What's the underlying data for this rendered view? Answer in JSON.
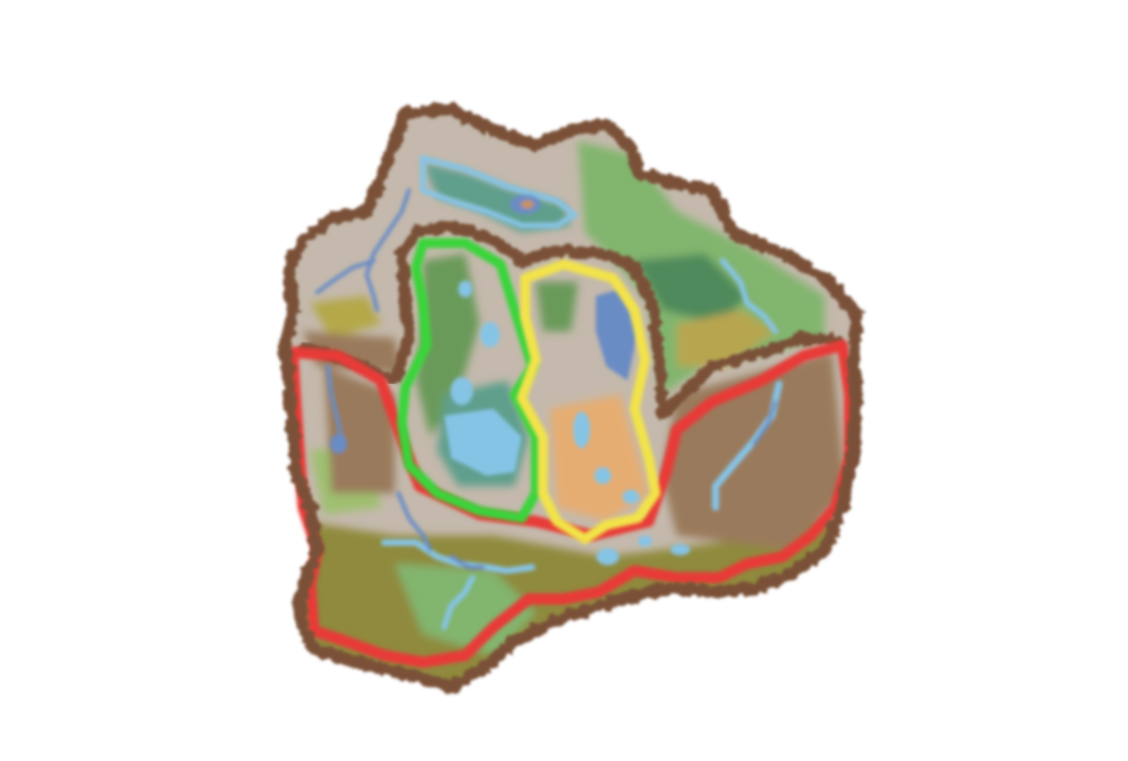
{
  "map": {
    "background_color": "#ffffff",
    "land_colors": {
      "plain": "#c4b9ac",
      "grass_light": "#82b56e",
      "grass_dark": "#4f8a5c",
      "olive": "#8f8a3e",
      "brown_slope": "#9a7a5c",
      "teal": "#5f9f8c",
      "sand": "#e6ad72"
    },
    "water_colors": {
      "lake_light": "#86c4e6",
      "river_dark": "#6a8cc4"
    },
    "border_colors": {
      "outer_coast": "#7a5138",
      "inner_ridge": "#7a5138",
      "region_red": "#e83a37",
      "region_green": "#3ad43a",
      "region_yellow": "#f2e34a"
    },
    "regions": [
      "outer-coast",
      "red-region",
      "green-region",
      "yellow-region",
      "inner-ridge"
    ]
  }
}
